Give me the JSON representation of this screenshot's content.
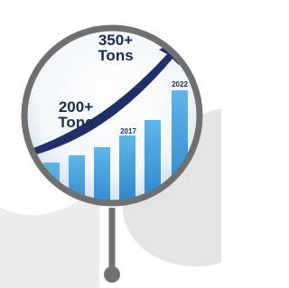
{
  "callouts": [
    {
      "amount": "350+",
      "unit": "Tons"
    },
    {
      "amount": "200+",
      "unit": "Tons"
    }
  ],
  "year_labels": [
    "2017",
    "2022"
  ]
}
